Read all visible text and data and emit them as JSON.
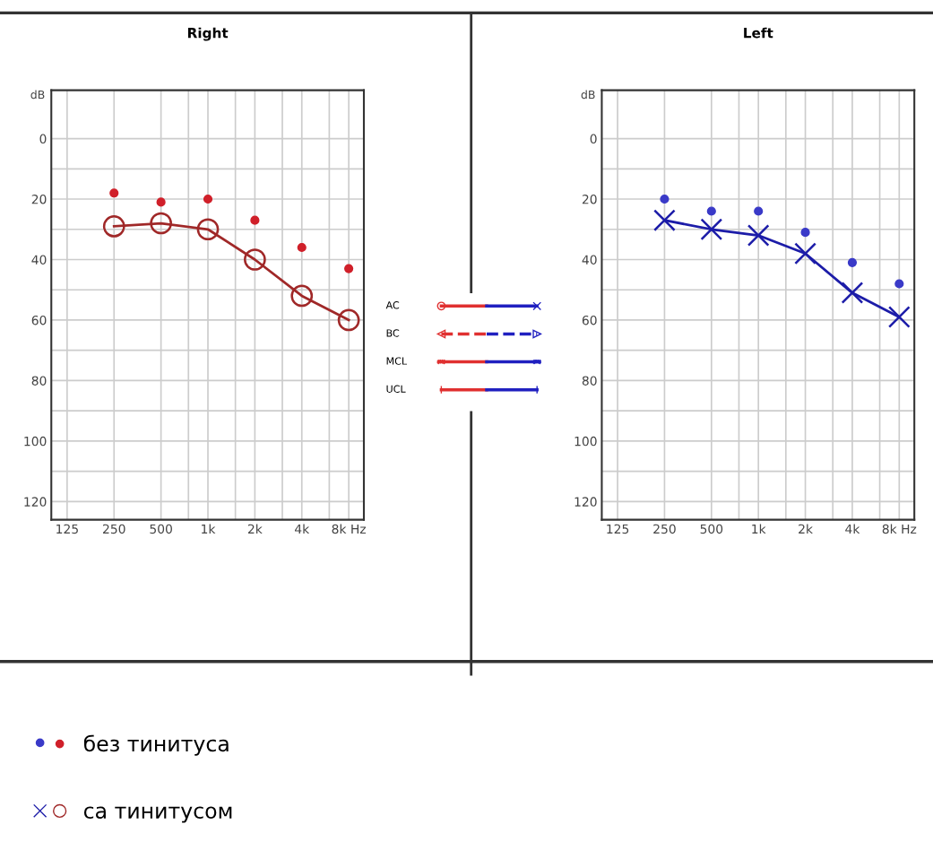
{
  "chart_data": [
    {
      "type": "line",
      "title": "Right",
      "ylabel": "dB",
      "x": [
        250,
        500,
        1000,
        2000,
        4000,
        8000
      ],
      "series": [
        {
          "name": "без тинитуса",
          "type": "scatter",
          "color": "#d0202a",
          "marker": "circle",
          "values": [
            18,
            21,
            20,
            27,
            36,
            43
          ]
        },
        {
          "name": "са тинитусом",
          "type": "line",
          "color": "#a02828",
          "marker": "circle",
          "values": [
            29,
            28,
            30,
            40,
            52,
            60
          ]
        }
      ],
      "log": "x",
      "xlim": [
        99,
        10000
      ],
      "xticks": [
        125,
        250,
        500,
        {
          "value": 750,
          "label": null
        },
        {
          "value": 1000,
          "label": "1k"
        },
        {
          "value": 1500,
          "label": null
        },
        {
          "value": 2000,
          "label": "2k"
        },
        {
          "value": 3000,
          "label": null
        },
        {
          "value": 4000,
          "label": "4k"
        },
        {
          "value": 6000,
          "label": null
        },
        {
          "value": 8000,
          "label": "8k Hz"
        }
      ],
      "ylim": [
        126,
        -16
      ],
      "yticks": [
        0,
        {
          "value": 10,
          "label": null
        },
        20,
        {
          "value": 30,
          "label": null
        },
        40,
        {
          "value": 50,
          "label": null
        },
        60,
        {
          "value": 70,
          "label": null
        },
        80,
        {
          "value": 90,
          "label": null
        },
        100,
        {
          "value": 110,
          "label": null
        },
        120
      ],
      "grid": true,
      "legend": "bottom"
    },
    {
      "type": "line",
      "title": "Left",
      "ylabel": "dB",
      "x": [
        250,
        500,
        1000,
        2000,
        4000,
        8000
      ],
      "series": [
        {
          "type": "scatter",
          "color": "#3a3ac8",
          "marker": "circle",
          "values": [
            20,
            24,
            24,
            31,
            41,
            48
          ]
        },
        {
          "type": "line",
          "color": "#1c1ca8",
          "marker": "cross",
          "values": [
            27,
            30,
            32,
            38,
            51,
            59
          ]
        }
      ],
      "log": "x",
      "xlim": [
        99,
        10000
      ],
      "xticks": [
        125,
        250,
        500,
        {
          "value": 750,
          "label": null
        },
        {
          "value": 1000,
          "label": "1k"
        },
        {
          "value": 1500,
          "label": null
        },
        {
          "value": 2000,
          "label": "2k"
        },
        {
          "value": 3000,
          "label": null
        },
        {
          "value": 4000,
          "label": "4k"
        },
        {
          "value": 6000,
          "label": null
        },
        {
          "value": 8000,
          "label": "8k Hz"
        }
      ],
      "ylim": [
        126,
        -16
      ],
      "yticks": [
        0,
        {
          "value": 10,
          "label": null
        },
        20,
        {
          "value": 30,
          "label": null
        },
        40,
        {
          "value": 50,
          "label": null
        },
        60,
        {
          "value": 70,
          "label": null
        },
        80,
        {
          "value": 90,
          "label": null
        },
        100,
        {
          "value": 110,
          "label": null
        },
        120
      ],
      "grid": true
    },
    {
      "type": "other",
      "annotations": [
        "AC",
        "BC",
        "MCL",
        "UCL"
      ]
    }
  ]
}
